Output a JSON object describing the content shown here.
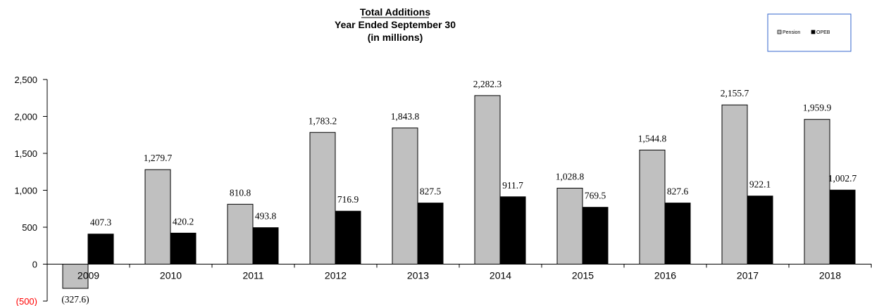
{
  "chart_data": {
    "type": "bar",
    "title": "Total Additions",
    "subtitle_lines": [
      "Year Ended September 30",
      "(in millions)"
    ],
    "categories": [
      "2009",
      "2010",
      "2011",
      "2012",
      "2013",
      "2014",
      "2015",
      "2016",
      "2017",
      "2018"
    ],
    "series": [
      {
        "name": "Pension",
        "color": "#c0c0c0",
        "values": [
          -327.6,
          1279.7,
          810.8,
          1783.2,
          1843.8,
          2282.3,
          1028.8,
          1544.8,
          2155.7,
          1959.9
        ],
        "labels": [
          "(327.6)",
          "1,279.7",
          "810.8",
          "1,783.2",
          "1,843.8",
          "2,282.3",
          "1,028.8",
          "1,544.8",
          "2,155.7",
          "1,959.9"
        ]
      },
      {
        "name": "OPEB",
        "color": "#000000",
        "values": [
          407.3,
          420.2,
          493.8,
          716.9,
          827.5,
          911.7,
          769.5,
          827.6,
          922.1,
          1002.7
        ],
        "labels": [
          "407.3",
          "420.2",
          "493.8",
          "716.9",
          "827.5",
          "911.7",
          "769.5",
          "827.6",
          "922.1",
          "1,002.7"
        ]
      }
    ],
    "y_ticks": [
      {
        "value": -500,
        "label": "(500)"
      },
      {
        "value": 0,
        "label": "0"
      },
      {
        "value": 500,
        "label": "500"
      },
      {
        "value": 1000,
        "label": "1,000"
      },
      {
        "value": 1500,
        "label": "1,500"
      },
      {
        "value": 2000,
        "label": "2,000"
      },
      {
        "value": 2500,
        "label": "2,500"
      }
    ],
    "ylim": [
      -500,
      2500
    ],
    "grid": false,
    "legend_position": "top-right",
    "negative_tick_color": "#ff0000",
    "legend_border_color": "#3366cc"
  }
}
